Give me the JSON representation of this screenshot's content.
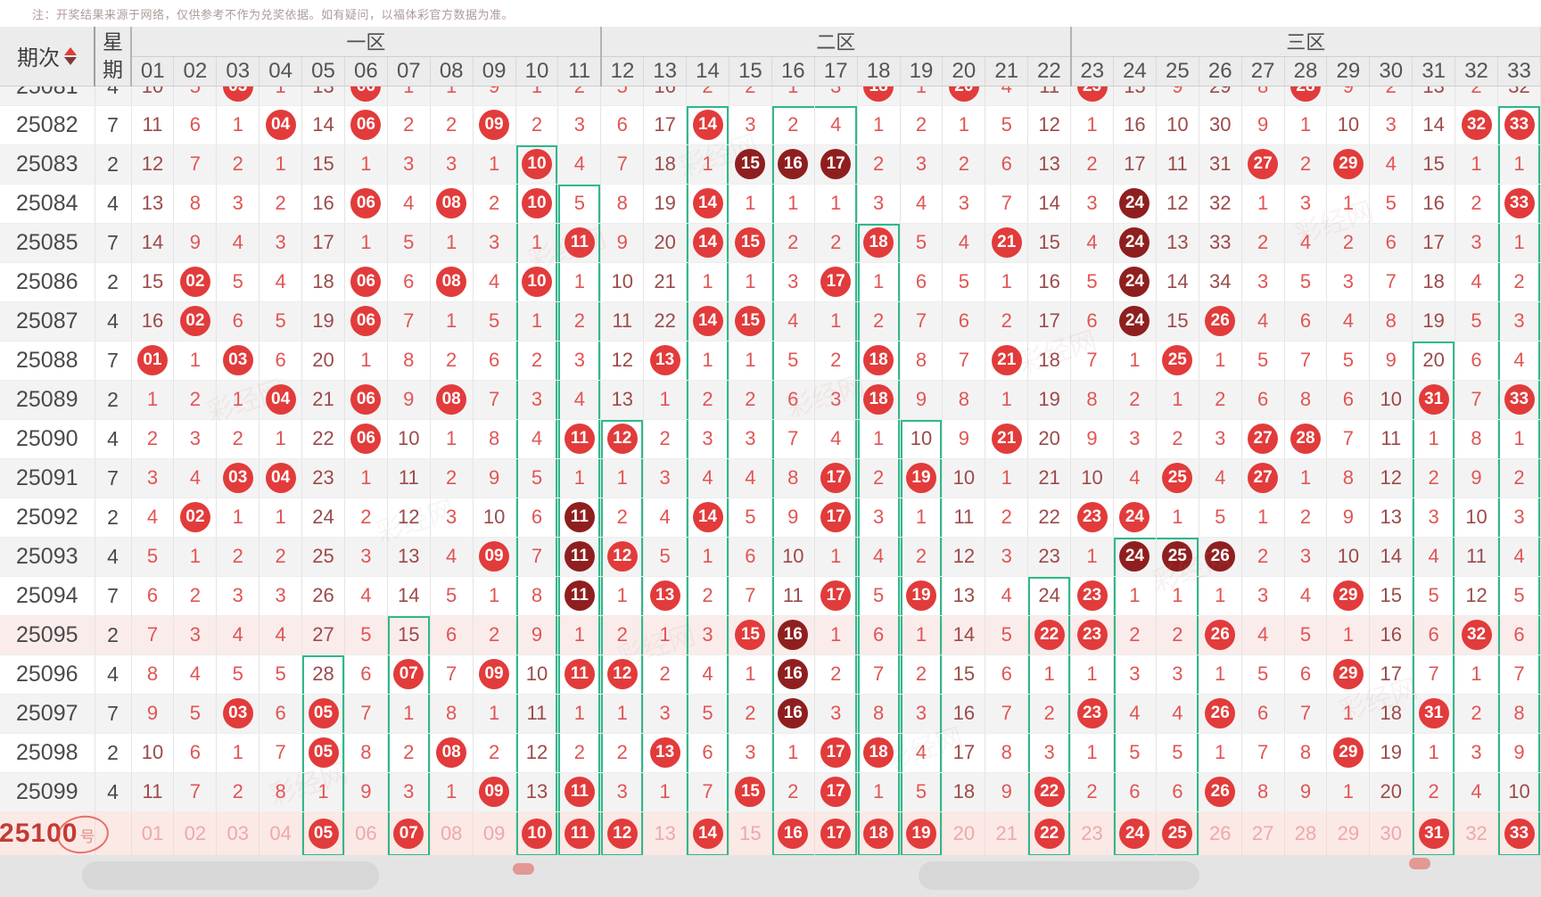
{
  "note": "注：开奖结果来源于网络，仅供参考不作为兑奖依据。如有疑问，以福体彩官方数据为准。",
  "header": {
    "period_label": "期次",
    "week_label": "星期",
    "zones": [
      {
        "label": "一区",
        "span": 11
      },
      {
        "label": "二区",
        "span": 11
      },
      {
        "label": "三区",
        "span": 11
      }
    ],
    "columns": [
      "01",
      "02",
      "03",
      "04",
      "05",
      "06",
      "07",
      "08",
      "09",
      "10",
      "11",
      "12",
      "13",
      "14",
      "15",
      "16",
      "17",
      "18",
      "19",
      "20",
      "21",
      "22",
      "23",
      "24",
      "25",
      "26",
      "27",
      "28",
      "29",
      "30",
      "31",
      "32",
      "33"
    ]
  },
  "cell_legend": {
    "plain": "miss count (red text, darker when >= 10)",
    "C": "drawn number, bright red ball",
    "D": "drawn number, dark maroon ball (repeat/consecutive group)"
  },
  "colors": {
    "ball_red": "#e23b3b",
    "ball_dark": "#8f1f1f",
    "num_red": "#e25454",
    "num_dark": "#9c4a4a",
    "green_box": "#2eb98b",
    "footer_pink": "#fbe9e6",
    "pale_num": "#eda9a9"
  },
  "rows": [
    {
      "period": "25081",
      "week": "4",
      "clipped": true,
      "cells": [
        "10",
        "5",
        "C",
        "1",
        "13",
        "C",
        "1",
        "1",
        "9",
        "1",
        "2",
        "5",
        "16",
        "2",
        "2",
        "1",
        "3",
        "C",
        "1",
        "C",
        "4",
        "11",
        "C",
        "15",
        "9",
        "29",
        "8",
        "C",
        "9",
        "2",
        "13",
        "2",
        "32"
      ]
    },
    {
      "period": "25082",
      "week": "7",
      "cells": [
        "11",
        "6",
        "1",
        "C",
        "14",
        "C",
        "2",
        "2",
        "C",
        "2",
        "3",
        "6",
        "17",
        "C",
        "3",
        "2",
        "4",
        "1",
        "2",
        "1",
        "5",
        "12",
        "1",
        "16",
        "10",
        "30",
        "9",
        "1",
        "10",
        "3",
        "14",
        "C",
        "C"
      ]
    },
    {
      "period": "25083",
      "week": "2",
      "cells": [
        "12",
        "7",
        "2",
        "1",
        "15",
        "1",
        "3",
        "3",
        "1",
        "C",
        "4",
        "7",
        "18",
        "1",
        "D",
        "D",
        "D",
        "2",
        "3",
        "2",
        "6",
        "13",
        "2",
        "17",
        "11",
        "31",
        "C",
        "2",
        "C",
        "4",
        "15",
        "1",
        "1"
      ]
    },
    {
      "period": "25084",
      "week": "4",
      "cells": [
        "13",
        "8",
        "3",
        "2",
        "16",
        "C",
        "4",
        "C",
        "2",
        "C",
        "5",
        "8",
        "19",
        "C",
        "1",
        "1",
        "1",
        "3",
        "4",
        "3",
        "7",
        "14",
        "3",
        "D",
        "12",
        "32",
        "1",
        "3",
        "1",
        "5",
        "16",
        "2",
        "C"
      ]
    },
    {
      "period": "25085",
      "week": "7",
      "cells": [
        "14",
        "9",
        "4",
        "3",
        "17",
        "1",
        "5",
        "1",
        "3",
        "1",
        "C",
        "9",
        "20",
        "C",
        "C",
        "2",
        "2",
        "C",
        "5",
        "4",
        "C",
        "15",
        "4",
        "D",
        "13",
        "33",
        "2",
        "4",
        "2",
        "6",
        "17",
        "3",
        "1"
      ]
    },
    {
      "period": "25086",
      "week": "2",
      "cells": [
        "15",
        "C",
        "5",
        "4",
        "18",
        "C",
        "6",
        "C",
        "4",
        "C",
        "1",
        "10",
        "21",
        "1",
        "1",
        "3",
        "C",
        "1",
        "6",
        "5",
        "1",
        "16",
        "5",
        "D",
        "14",
        "34",
        "3",
        "5",
        "3",
        "7",
        "18",
        "4",
        "2"
      ]
    },
    {
      "period": "25087",
      "week": "4",
      "cells": [
        "16",
        "C",
        "6",
        "5",
        "19",
        "C",
        "7",
        "1",
        "5",
        "1",
        "2",
        "11",
        "22",
        "C",
        "C",
        "4",
        "1",
        "2",
        "7",
        "6",
        "2",
        "17",
        "6",
        "D",
        "15",
        "C",
        "4",
        "6",
        "4",
        "8",
        "19",
        "5",
        "3"
      ]
    },
    {
      "period": "25088",
      "week": "7",
      "cells": [
        "C",
        "1",
        "C",
        "6",
        "20",
        "1",
        "8",
        "2",
        "6",
        "2",
        "3",
        "12",
        "C",
        "1",
        "1",
        "5",
        "2",
        "C",
        "8",
        "7",
        "C",
        "18",
        "7",
        "1",
        "C",
        "1",
        "5",
        "7",
        "5",
        "9",
        "20",
        "6",
        "4"
      ]
    },
    {
      "period": "25089",
      "week": "2",
      "cells": [
        "1",
        "2",
        "1",
        "C",
        "21",
        "C",
        "9",
        "C",
        "7",
        "3",
        "4",
        "13",
        "1",
        "2",
        "2",
        "6",
        "3",
        "C",
        "9",
        "8",
        "1",
        "19",
        "8",
        "2",
        "1",
        "2",
        "6",
        "8",
        "6",
        "10",
        "C",
        "7",
        "C"
      ]
    },
    {
      "period": "25090",
      "week": "4",
      "cells": [
        "2",
        "3",
        "2",
        "1",
        "22",
        "C",
        "10",
        "1",
        "8",
        "4",
        "C",
        "C",
        "2",
        "3",
        "3",
        "7",
        "4",
        "1",
        "10",
        "9",
        "C",
        "20",
        "9",
        "3",
        "2",
        "3",
        "C",
        "C",
        "7",
        "11",
        "1",
        "8",
        "1"
      ]
    },
    {
      "period": "25091",
      "week": "7",
      "cells": [
        "3",
        "4",
        "C",
        "C",
        "23",
        "1",
        "11",
        "2",
        "9",
        "5",
        "1",
        "1",
        "3",
        "4",
        "4",
        "8",
        "C",
        "2",
        "C",
        "10",
        "1",
        "21",
        "10",
        "4",
        "C",
        "4",
        "C",
        "1",
        "8",
        "12",
        "2",
        "9",
        "2"
      ]
    },
    {
      "period": "25092",
      "week": "2",
      "cells": [
        "4",
        "C",
        "1",
        "1",
        "24",
        "2",
        "12",
        "3",
        "10",
        "6",
        "D",
        "2",
        "4",
        "C",
        "5",
        "9",
        "C",
        "3",
        "1",
        "11",
        "2",
        "22",
        "C",
        "C",
        "1",
        "5",
        "1",
        "2",
        "9",
        "13",
        "3",
        "10",
        "3"
      ]
    },
    {
      "period": "25093",
      "week": "4",
      "cells": [
        "5",
        "1",
        "2",
        "2",
        "25",
        "3",
        "13",
        "4",
        "C",
        "7",
        "D",
        "C",
        "5",
        "1",
        "6",
        "10",
        "1",
        "4",
        "2",
        "12",
        "3",
        "23",
        "1",
        "D",
        "D",
        "D",
        "2",
        "3",
        "10",
        "14",
        "4",
        "11",
        "4"
      ]
    },
    {
      "period": "25094",
      "week": "7",
      "cells": [
        "6",
        "2",
        "3",
        "3",
        "26",
        "4",
        "14",
        "5",
        "1",
        "8",
        "D",
        "1",
        "C",
        "2",
        "7",
        "11",
        "C",
        "5",
        "C",
        "13",
        "4",
        "24",
        "C",
        "1",
        "1",
        "1",
        "3",
        "4",
        "C",
        "15",
        "5",
        "12",
        "5"
      ]
    },
    {
      "period": "25095",
      "week": "2",
      "pink": true,
      "cells": [
        "7",
        "3",
        "4",
        "4",
        "27",
        "5",
        "15",
        "6",
        "2",
        "9",
        "1",
        "2",
        "1",
        "3",
        "C",
        "D",
        "1",
        "6",
        "1",
        "14",
        "5",
        "C",
        "C",
        "2",
        "2",
        "C",
        "4",
        "5",
        "1",
        "16",
        "6",
        "C",
        "6"
      ]
    },
    {
      "period": "25096",
      "week": "4",
      "cells": [
        "8",
        "4",
        "5",
        "5",
        "28",
        "6",
        "C",
        "7",
        "C",
        "10",
        "C",
        "C",
        "2",
        "4",
        "1",
        "D",
        "2",
        "7",
        "2",
        "15",
        "6",
        "1",
        "1",
        "3",
        "3",
        "1",
        "5",
        "6",
        "C",
        "17",
        "7",
        "1",
        "7"
      ]
    },
    {
      "period": "25097",
      "week": "7",
      "cells": [
        "9",
        "5",
        "C",
        "6",
        "C",
        "7",
        "1",
        "8",
        "1",
        "11",
        "1",
        "1",
        "3",
        "5",
        "2",
        "D",
        "3",
        "8",
        "3",
        "16",
        "7",
        "2",
        "C",
        "4",
        "4",
        "C",
        "6",
        "7",
        "1",
        "18",
        "C",
        "2",
        "8"
      ]
    },
    {
      "period": "25098",
      "week": "2",
      "cells": [
        "10",
        "6",
        "1",
        "7",
        "C",
        "8",
        "2",
        "C",
        "2",
        "12",
        "2",
        "2",
        "C",
        "6",
        "3",
        "1",
        "C",
        "C",
        "4",
        "17",
        "8",
        "3",
        "1",
        "5",
        "5",
        "1",
        "7",
        "8",
        "C",
        "19",
        "1",
        "3",
        "9"
      ]
    },
    {
      "period": "25099",
      "week": "4",
      "cells": [
        "11",
        "7",
        "2",
        "8",
        "1",
        "9",
        "3",
        "1",
        "C",
        "13",
        "C",
        "3",
        "1",
        "7",
        "C",
        "2",
        "C",
        "1",
        "5",
        "18",
        "9",
        "C",
        "2",
        "6",
        "6",
        "C",
        "8",
        "9",
        "1",
        "20",
        "2",
        "4",
        "10"
      ]
    }
  ],
  "footer_row": {
    "label_main": "25100",
    "label_suffix": "号",
    "cells": [
      "01",
      "02",
      "03",
      "04",
      "05",
      "06",
      "07",
      "08",
      "09",
      "10",
      "11",
      "12",
      "13",
      "14",
      "15",
      "16",
      "17",
      "18",
      "19",
      "20",
      "21",
      "22",
      "23",
      "24",
      "25",
      "26",
      "27",
      "28",
      "29",
      "30",
      "31",
      "32",
      "33"
    ],
    "circled": [
      5,
      7,
      10,
      11,
      12,
      14,
      16,
      17,
      18,
      19,
      22,
      24,
      25,
      31,
      33
    ]
  },
  "green_boxes": [
    {
      "col": 5,
      "span": 1,
      "from": "25096"
    },
    {
      "col": 7,
      "span": 1,
      "from": "25095"
    },
    {
      "col": 10,
      "span": 1,
      "from": "25083"
    },
    {
      "col": 11,
      "span": 1,
      "from": "25084"
    },
    {
      "col": 12,
      "span": 1,
      "from": "25090"
    },
    {
      "col": 14,
      "span": 1,
      "from": "25082"
    },
    {
      "col": 16,
      "span": 2,
      "from": "25082"
    },
    {
      "col": 18,
      "span": 1,
      "from": "25085"
    },
    {
      "col": 19,
      "span": 1,
      "from": "25090"
    },
    {
      "col": 22,
      "span": 1,
      "from": "25094"
    },
    {
      "col": 24,
      "span": 2,
      "from": "25093"
    },
    {
      "col": 31,
      "span": 1,
      "from": "25088"
    },
    {
      "col": 33,
      "span": 1,
      "from": "25082"
    }
  ],
  "watermark_text": "彩经网"
}
